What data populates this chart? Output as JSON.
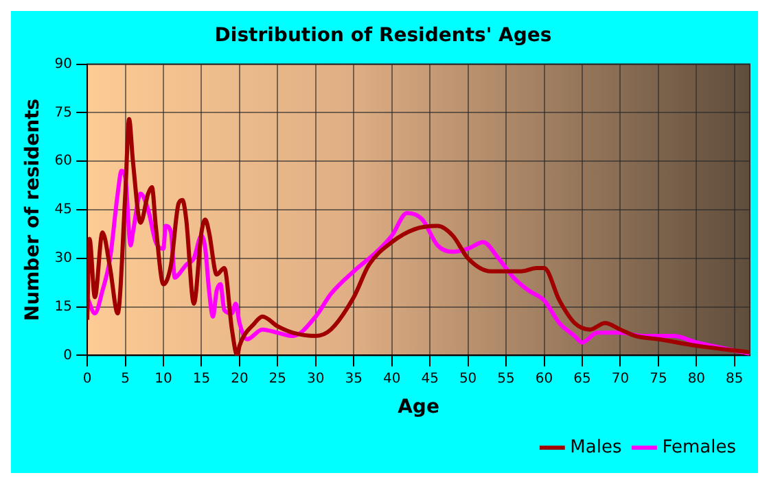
{
  "chart_data": {
    "type": "line",
    "title": "Distribution of Residents' Ages",
    "xlabel": "Age",
    "ylabel": "Number of residents",
    "xlim": [
      0,
      87
    ],
    "xticks": [
      0,
      5,
      10,
      15,
      20,
      25,
      30,
      35,
      40,
      45,
      50,
      55,
      60,
      65,
      70,
      75,
      80,
      85
    ],
    "ylim": [
      0,
      90
    ],
    "yticks": [
      0,
      15,
      30,
      45,
      60,
      75,
      90
    ],
    "grid": true,
    "legend": "bottom right",
    "marker": "none",
    "line_style": "solid",
    "series": [
      {
        "name": "Males",
        "color": "#a00000",
        "x": [
          0,
          0.3,
          1,
          2,
          3,
          4,
          5,
          5.5,
          6,
          7,
          8,
          8.5,
          9,
          10,
          11,
          12,
          12.5,
          13,
          14,
          15,
          15.5,
          16,
          17,
          18,
          19,
          19.7,
          20,
          22,
          23,
          25,
          27,
          30,
          32,
          35,
          37,
          40,
          43,
          46,
          48,
          50,
          53,
          57,
          59,
          60,
          62,
          64,
          66,
          68,
          70,
          72,
          75,
          80,
          85,
          87
        ],
        "values": [
          11,
          36,
          18,
          38,
          27,
          13,
          50,
          73,
          60,
          41,
          50,
          52,
          40,
          22,
          28,
          47,
          48,
          42,
          16,
          38,
          42,
          38,
          25,
          27,
          8,
          0,
          3,
          10,
          12,
          9,
          7,
          6,
          8,
          18,
          28,
          35,
          39,
          40,
          37,
          30,
          26,
          26,
          27,
          27,
          17,
          10,
          8,
          10,
          8,
          6,
          5,
          3,
          1.5,
          1
        ]
      },
      {
        "name": "Females",
        "color": "#ff00ff",
        "x": [
          0,
          1,
          2,
          3,
          4,
          4.5,
          5,
          5.7,
          6,
          7,
          8,
          9,
          10,
          10.3,
          11,
          11.5,
          12,
          13,
          14,
          15,
          15.5,
          16,
          16.5,
          17,
          17.5,
          18,
          19,
          19.5,
          20,
          21,
          23,
          25,
          27,
          30,
          32,
          35,
          38,
          40,
          42,
          44,
          46,
          48,
          50,
          52,
          54,
          56,
          58,
          60,
          62,
          64,
          65,
          67,
          70,
          73,
          77,
          80,
          85,
          87
        ],
        "values": [
          18,
          13,
          20,
          30,
          50,
          57,
          55,
          34,
          38,
          50,
          45,
          35,
          33,
          40,
          38,
          24,
          25,
          28,
          30,
          37,
          33,
          20,
          12,
          20,
          22,
          14,
          13,
          16,
          10,
          5,
          8,
          7,
          6,
          12,
          19,
          26,
          32,
          37,
          44,
          42,
          34,
          32,
          33,
          35,
          30,
          24,
          20,
          17,
          10,
          6,
          4,
          7,
          7,
          6,
          6,
          4,
          1.5,
          0.5
        ]
      }
    ]
  }
}
